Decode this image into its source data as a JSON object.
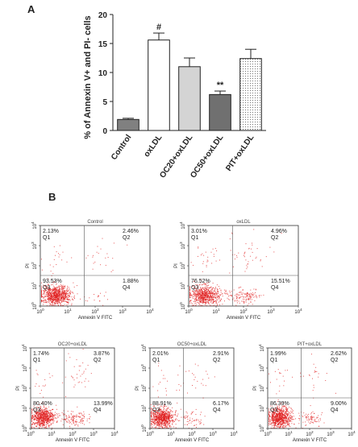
{
  "panel_a_label": "A",
  "panel_b_label": "B",
  "chart_data": [
    {
      "type": "bar",
      "ylabel": "% of Annexin V+ and PI- cells",
      "ylim": [
        0,
        20
      ],
      "yticks": [
        0,
        5,
        10,
        15,
        20
      ],
      "grid": false,
      "categories": [
        "Control",
        "oxLDL",
        "OC20+oxLDL",
        "OC50+oxLDL",
        "PIT+oxLDL"
      ],
      "values": [
        1.9,
        15.6,
        11.0,
        6.2,
        12.4
      ],
      "errors": [
        0.2,
        1.2,
        1.5,
        0.6,
        1.6
      ],
      "annotations": [
        "",
        "#",
        "",
        "**",
        ""
      ],
      "bar_colors": [
        "#808080",
        "#ffffff",
        "#d4d4d4",
        "#707070",
        "#f2f2f2"
      ],
      "bar_patterns": [
        "solid",
        "solid",
        "solid",
        "solid",
        "dotted"
      ]
    },
    {
      "type": "scatter",
      "panels": [
        {
          "title": "Control",
          "Q1": "2.13%",
          "Q2": "2.46%",
          "Q3": "93.53%",
          "Q4": "1.88%"
        },
        {
          "title": "oxLDL",
          "Q1": "3.01%",
          "Q2": "4.96%",
          "Q3": "76.52%",
          "Q4": "15.51%"
        },
        {
          "title": "OC20+oxLDL",
          "Q1": "1.74%",
          "Q2": "3.87%",
          "Q3": "80.40%",
          "Q4": "13.99%"
        },
        {
          "title": "OC50+oxLDL",
          "Q1": "2.01%",
          "Q2": "2.91%",
          "Q3": "88.91%",
          "Q4": "6.17%"
        },
        {
          "title": "PIT+oxLDL",
          "Q1": "1.99%",
          "Q2": "2.62%",
          "Q3": "86.39%",
          "Q4": "9.00%"
        }
      ],
      "xlabel": "Annexin V FITC",
      "ylabel": "PI",
      "quadrant_names": [
        "Q1",
        "Q2",
        "Q3",
        "Q4"
      ],
      "tick_labels": [
        "10",
        "10",
        "10",
        "10",
        "10"
      ],
      "tick_exponents": [
        "0",
        "1",
        "2",
        "3",
        "4"
      ],
      "dot_color": "#e02020"
    }
  ]
}
